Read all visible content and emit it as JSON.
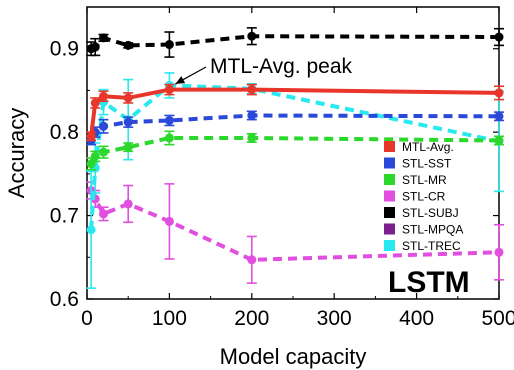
{
  "chart_data": {
    "type": "line",
    "xlabel": "Model capacity",
    "ylabel": "Accuracy",
    "xlim": [
      0,
      500
    ],
    "ylim": [
      0.6,
      0.95
    ],
    "x_ticks": [
      0,
      100,
      200,
      300,
      400,
      500
    ],
    "y_ticks": [
      0.6,
      0.7,
      0.8,
      0.9
    ],
    "x_tick_labels": [
      "0",
      "100",
      "200",
      "300",
      "400",
      "500"
    ],
    "y_tick_labels": [
      "0.6",
      "0.7",
      "0.8",
      "0.9"
    ],
    "grid": false,
    "legend_position": "right",
    "badge": "LSTM",
    "annotation": {
      "text": "MTL-Avg. peak",
      "x": 100,
      "y": 0.853
    },
    "series": [
      {
        "name": "MTL-Avg.",
        "color": "#e8372a",
        "dashed": false,
        "points": [
          {
            "x": 5,
            "y": 0.795,
            "err": 0.005
          },
          {
            "x": 10,
            "y": 0.835,
            "err": 0.006
          },
          {
            "x": 20,
            "y": 0.843,
            "err": 0.006
          },
          {
            "x": 50,
            "y": 0.841,
            "err": 0.006
          },
          {
            "x": 100,
            "y": 0.851,
            "err": 0.006
          },
          {
            "x": 200,
            "y": 0.851,
            "err": 0.006
          },
          {
            "x": 500,
            "y": 0.847,
            "err": 0.008
          }
        ]
      },
      {
        "name": "STL-SST",
        "color": "#2b49d8",
        "dashed": true,
        "points": [
          {
            "x": 5,
            "y": 0.79,
            "err": 0.005
          },
          {
            "x": 10,
            "y": 0.8,
            "err": 0.006
          },
          {
            "x": 20,
            "y": 0.807,
            "err": 0.008
          },
          {
            "x": 50,
            "y": 0.812,
            "err": 0.006
          },
          {
            "x": 100,
            "y": 0.814,
            "err": 0.006
          },
          {
            "x": 200,
            "y": 0.82,
            "err": 0.005
          },
          {
            "x": 500,
            "y": 0.819,
            "err": 0.005
          }
        ]
      },
      {
        "name": "STL-MR",
        "color": "#2bd82b",
        "dashed": true,
        "points": [
          {
            "x": 5,
            "y": 0.762,
            "err": 0.007
          },
          {
            "x": 10,
            "y": 0.771,
            "err": 0.006
          },
          {
            "x": 20,
            "y": 0.776,
            "err": 0.007
          },
          {
            "x": 50,
            "y": 0.782,
            "err": 0.005
          },
          {
            "x": 100,
            "y": 0.793,
            "err": 0.008
          },
          {
            "x": 200,
            "y": 0.793,
            "err": 0.005
          },
          {
            "x": 500,
            "y": 0.79,
            "err": 0.005
          }
        ]
      },
      {
        "name": "STL-CR",
        "color": "#e04fe0",
        "dashed": true,
        "points": [
          {
            "x": 5,
            "y": 0.73,
            "err": 0.01
          },
          {
            "x": 10,
            "y": 0.72,
            "err": 0.01
          },
          {
            "x": 20,
            "y": 0.702,
            "err": 0.008
          },
          {
            "x": 50,
            "y": 0.714,
            "err": 0.022
          },
          {
            "x": 100,
            "y": 0.693,
            "err": 0.045
          },
          {
            "x": 200,
            "y": 0.647,
            "err": 0.028
          },
          {
            "x": 500,
            "y": 0.656,
            "err": 0.033
          }
        ]
      },
      {
        "name": "STL-SUBJ",
        "color": "#000000",
        "dashed": true,
        "points": [
          {
            "x": 5,
            "y": 0.9,
            "err": 0.008
          },
          {
            "x": 10,
            "y": 0.902,
            "err": 0.01
          },
          {
            "x": 20,
            "y": 0.913,
            "err": 0.004
          },
          {
            "x": 50,
            "y": 0.904,
            "err": 0.003
          },
          {
            "x": 100,
            "y": 0.905,
            "err": 0.015
          },
          {
            "x": 200,
            "y": 0.915,
            "err": 0.01
          },
          {
            "x": 500,
            "y": 0.914,
            "err": 0.01
          }
        ]
      },
      {
        "name": "STL-MPQA",
        "color": "#7b1f8f",
        "dashed": true,
        "points": []
      },
      {
        "name": "STL-TREC",
        "color": "#28e8f0",
        "dashed": true,
        "points": [
          {
            "x": 5,
            "y": 0.683,
            "err": 0.07
          },
          {
            "x": 10,
            "y": 0.757,
            "err": 0.03
          },
          {
            "x": 20,
            "y": 0.836,
            "err": 0.015
          },
          {
            "x": 50,
            "y": 0.815,
            "err": 0.048
          },
          {
            "x": 100,
            "y": 0.856,
            "err": 0.015
          },
          {
            "x": 200,
            "y": 0.852,
            "err": 0.006
          },
          {
            "x": 500,
            "y": 0.789,
            "err": 0.06
          }
        ]
      }
    ]
  }
}
